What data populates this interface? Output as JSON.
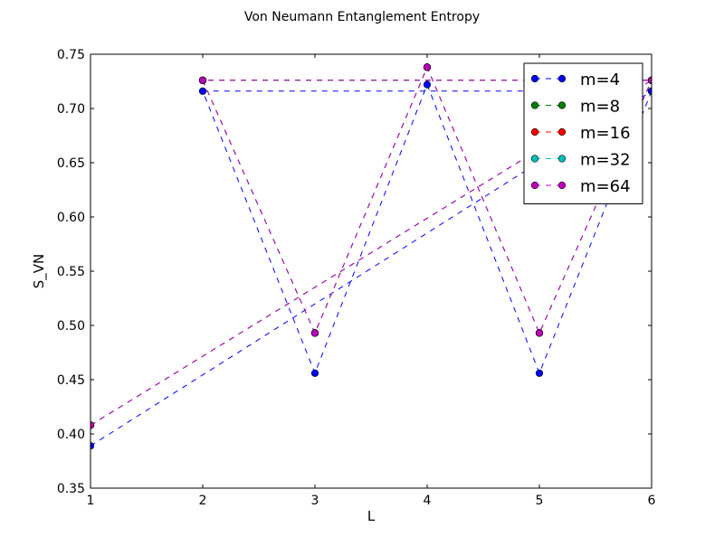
{
  "chart_data": {
    "type": "line",
    "title": "Von Neumann Entanglement Entropy",
    "xlabel": "L",
    "ylabel": "S_VN",
    "xlim": [
      1,
      6
    ],
    "ylim": [
      0.35,
      0.75
    ],
    "x_ticks": [
      "1",
      "2",
      "3",
      "4",
      "5",
      "6"
    ],
    "y_ticks": [
      "0.35",
      "0.40",
      "0.45",
      "0.50",
      "0.55",
      "0.60",
      "0.65",
      "0.70",
      "0.75"
    ],
    "grid": false,
    "legend_position": "top-right",
    "line_style": "dashed",
    "marker": "circle",
    "x_order": [
      1,
      2,
      3,
      4,
      5,
      6
    ],
    "series": [
      {
        "name": "m=4",
        "color": "#0000ff",
        "x": [
          1,
          6,
          2,
          3,
          4,
          5,
          6
        ],
        "y": [
          0.389,
          0.716,
          0.716,
          0.456,
          0.722,
          0.456,
          0.716
        ]
      },
      {
        "name": "m=8",
        "color": "#008000",
        "x": [
          1,
          6,
          2,
          3,
          4,
          5,
          6
        ],
        "y": [
          0.408,
          0.726,
          0.726,
          0.493,
          0.738,
          0.493,
          0.726
        ]
      },
      {
        "name": "m=16",
        "color": "#ff0000",
        "x": [
          1,
          6,
          2,
          3,
          4,
          5,
          6
        ],
        "y": [
          0.408,
          0.726,
          0.726,
          0.493,
          0.738,
          0.493,
          0.726
        ]
      },
      {
        "name": "m=32",
        "color": "#00bfbf",
        "x": [
          1,
          6,
          2,
          3,
          4,
          5,
          6
        ],
        "y": [
          0.408,
          0.726,
          0.726,
          0.493,
          0.738,
          0.493,
          0.726
        ]
      },
      {
        "name": "m=64",
        "color": "#bf00bf",
        "x": [
          1,
          6,
          2,
          3,
          4,
          5,
          6
        ],
        "y": [
          0.408,
          0.726,
          0.726,
          0.493,
          0.738,
          0.493,
          0.726
        ]
      }
    ]
  }
}
